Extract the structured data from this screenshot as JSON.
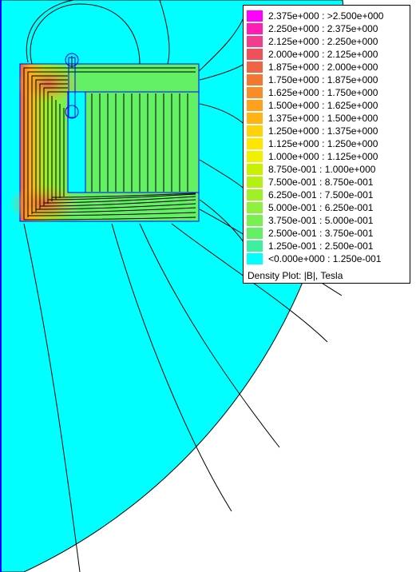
{
  "legend": {
    "caption": "Density Plot: |B|, Tesla",
    "items": [
      {
        "label": "2.375e+000 : >2.500e+000",
        "color": "#ff00ff"
      },
      {
        "label": "2.250e+000 : 2.375e+000",
        "color": "#ff1eb4"
      },
      {
        "label": "2.125e+000 : 2.250e+000",
        "color": "#f23c8c"
      },
      {
        "label": "2.000e+000 : 2.125e+000",
        "color": "#f0505a"
      },
      {
        "label": "1.875e+000 : 2.000e+000",
        "color": "#f06446"
      },
      {
        "label": "1.750e+000 : 1.875e+000",
        "color": "#f27832"
      },
      {
        "label": "1.625e+000 : 1.750e+000",
        "color": "#f88c28"
      },
      {
        "label": "1.500e+000 : 1.625e+000",
        "color": "#ffa01e"
      },
      {
        "label": "1.375e+000 : 1.500e+000",
        "color": "#ffb414"
      },
      {
        "label": "1.250e+000 : 1.375e+000",
        "color": "#ffd20a"
      },
      {
        "label": "1.125e+000 : 1.250e+000",
        "color": "#ffe600"
      },
      {
        "label": "1.000e+000 : 1.125e+000",
        "color": "#f0f000"
      },
      {
        "label": "8.750e-001 : 1.000e+000",
        "color": "#c8f000"
      },
      {
        "label": "7.500e-001 : 8.750e-001",
        "color": "#b4f014"
      },
      {
        "label": "6.250e-001 : 7.500e-001",
        "color": "#a0f028"
      },
      {
        "label": "5.000e-001 : 6.250e-001",
        "color": "#8cf03c"
      },
      {
        "label": "3.750e-001 : 5.000e-001",
        "color": "#78f050"
      },
      {
        "label": "2.500e-001 : 3.750e-001",
        "color": "#64f064"
      },
      {
        "label": "1.250e-001 : 2.500e-001",
        "color": "#3cf0a0"
      },
      {
        "label": "<0.000e+000 : 1.250e-001",
        "color": "#00ffff"
      }
    ]
  },
  "colors": {
    "air": "#00ffff",
    "core_low": "#64f064",
    "core_mid": "#a0f028",
    "core_high": "#ffb414",
    "core_peak": "#f06446",
    "outline": "#0000ff",
    "flux_line": "#000000"
  }
}
